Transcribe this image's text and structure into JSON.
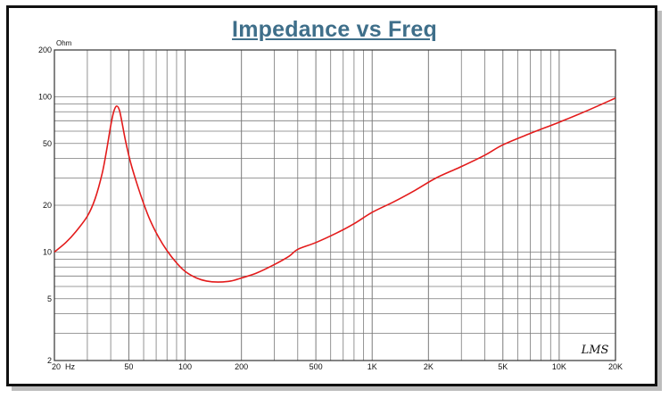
{
  "chart_data": {
    "type": "line",
    "title": "Impedance vs Freq",
    "ylabel": "Ohm",
    "xlabel": "",
    "x_scale": "log",
    "y_scale": "log",
    "xlim": [
      20,
      20000
    ],
    "ylim": [
      2,
      200
    ],
    "grid": true,
    "x_tick_labels": [
      {
        "value": 20,
        "label": "20  Hz"
      },
      {
        "value": 50,
        "label": "50"
      },
      {
        "value": 100,
        "label": "100"
      },
      {
        "value": 200,
        "label": "200"
      },
      {
        "value": 500,
        "label": "500"
      },
      {
        "value": 1000,
        "label": "1K"
      },
      {
        "value": 2000,
        "label": "2K"
      },
      {
        "value": 5000,
        "label": "5K"
      },
      {
        "value": 10000,
        "label": "10K"
      },
      {
        "value": 20000,
        "label": "20K"
      }
    ],
    "y_tick_labels": [
      {
        "value": 200,
        "label": "200"
      },
      {
        "value": 100,
        "label": "100"
      },
      {
        "value": 50,
        "label": "50"
      },
      {
        "value": 20,
        "label": "20"
      },
      {
        "value": 10,
        "label": "10"
      },
      {
        "value": 5,
        "label": "5"
      },
      {
        "value": 2,
        "label": "2"
      }
    ],
    "series": [
      {
        "color": "#e31b1b",
        "points": [
          [
            20,
            10.0
          ],
          [
            23,
            11.5
          ],
          [
            26,
            13.5
          ],
          [
            30,
            17
          ],
          [
            33,
            22
          ],
          [
            36,
            32
          ],
          [
            38,
            45
          ],
          [
            40,
            65
          ],
          [
            41.5,
            80
          ],
          [
            43,
            87
          ],
          [
            44.5,
            82
          ],
          [
            46,
            68
          ],
          [
            48,
            52
          ],
          [
            51,
            38
          ],
          [
            55,
            28
          ],
          [
            60,
            20.5
          ],
          [
            65,
            16
          ],
          [
            72,
            12.5
          ],
          [
            80,
            10.2
          ],
          [
            90,
            8.5
          ],
          [
            100,
            7.5
          ],
          [
            115,
            6.8
          ],
          [
            130,
            6.5
          ],
          [
            150,
            6.4
          ],
          [
            175,
            6.5
          ],
          [
            200,
            6.8
          ],
          [
            240,
            7.3
          ],
          [
            300,
            8.3
          ],
          [
            360,
            9.4
          ],
          [
            400,
            10.4
          ],
          [
            500,
            11.5
          ],
          [
            650,
            13.3
          ],
          [
            800,
            15.2
          ],
          [
            1000,
            18
          ],
          [
            1300,
            21
          ],
          [
            1700,
            25
          ],
          [
            2200,
            30
          ],
          [
            3000,
            35.5
          ],
          [
            4000,
            42
          ],
          [
            5000,
            49
          ],
          [
            7000,
            58
          ],
          [
            10000,
            68.5
          ],
          [
            14000,
            81
          ],
          [
            20000,
            98
          ]
        ]
      }
    ]
  },
  "watermark": "LMS",
  "colors": {
    "title": "#3f6f8a",
    "curve": "#e31b1b",
    "grid": "#7a7a7a",
    "frame": "#111111"
  }
}
